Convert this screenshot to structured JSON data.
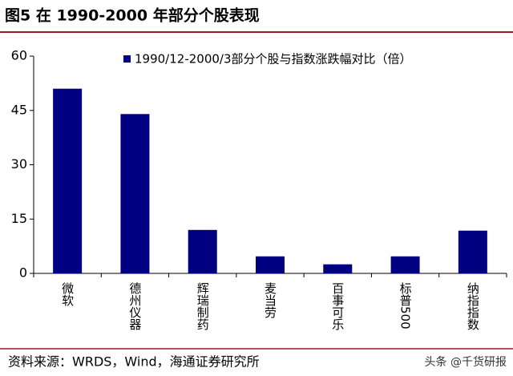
{
  "chart_data": {
    "type": "bar",
    "title": "图5 在 1990-2000 年部分个股表现",
    "categories": [
      "微软",
      "德州仪器",
      "辉瑞制药",
      "麦当劳",
      "百事可乐",
      "标普500",
      "纳指指数"
    ],
    "series": [
      {
        "name": "1990/12-2000/3部分个股与指数涨跌幅对比（倍）",
        "color": "#000080",
        "values": [
          51,
          44,
          12,
          4.7,
          2.5,
          4.7,
          11.8
        ]
      }
    ],
    "ylim": [
      0,
      60
    ],
    "yticks": [
      0,
      15,
      30,
      45,
      60
    ],
    "grid": false,
    "legend": "top",
    "source": "资料来源：WRDS，Wind，海通证券研究所",
    "watermark": "头条 @千货研报"
  }
}
